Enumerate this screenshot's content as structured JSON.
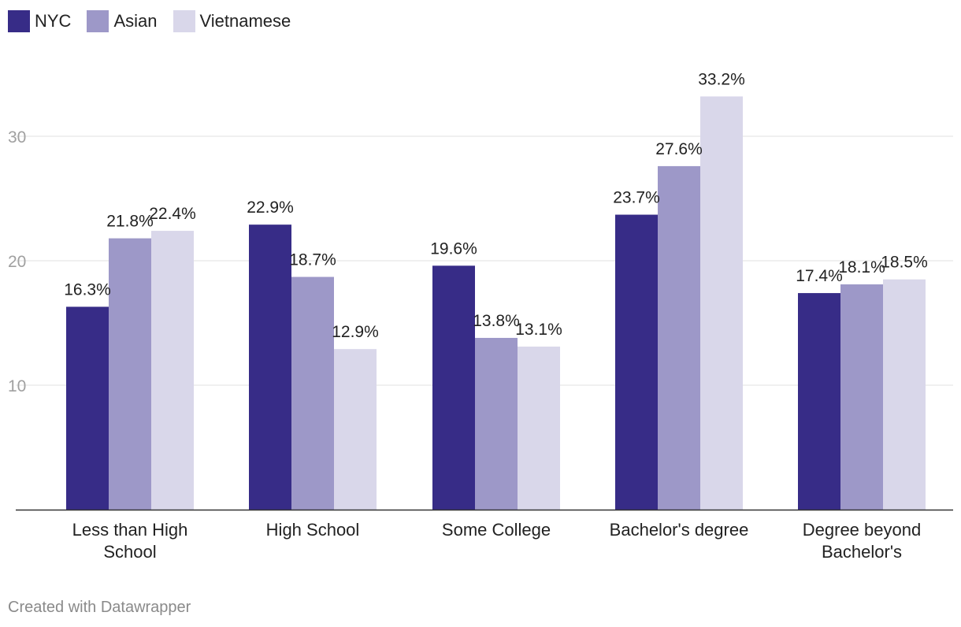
{
  "chart_data": {
    "type": "bar",
    "categories": [
      [
        "Less than High",
        "School"
      ],
      [
        "High School"
      ],
      [
        "Some College"
      ],
      [
        "Bachelor's degree"
      ],
      [
        "Degree beyond",
        "Bachelor's"
      ]
    ],
    "series": [
      {
        "name": "NYC",
        "color": "#372c87",
        "values": [
          16.3,
          22.9,
          19.6,
          23.7,
          17.4
        ],
        "labels": [
          "16.3%",
          "22.9%",
          "19.6%",
          "23.7%",
          "17.4%"
        ]
      },
      {
        "name": "Asian",
        "color": "#9d98c8",
        "values": [
          21.8,
          18.7,
          13.8,
          27.6,
          18.1
        ],
        "labels": [
          "21.8%",
          "18.7%",
          "13.8%",
          "27.6%",
          "18.1%"
        ]
      },
      {
        "name": "Vietnamese",
        "color": "#d9d7ea",
        "values": [
          22.4,
          12.9,
          13.1,
          33.2,
          18.5
        ],
        "labels": [
          "22.4%",
          "12.9%",
          "13.1%",
          "33.2%",
          "18.5%"
        ]
      }
    ],
    "yticks": [
      10,
      20,
      30
    ],
    "ylim": [
      0,
      36
    ],
    "grid": true,
    "legend": "top-left",
    "title": "",
    "xlabel": "",
    "ylabel": ""
  },
  "footer": "Created with Datawrapper"
}
